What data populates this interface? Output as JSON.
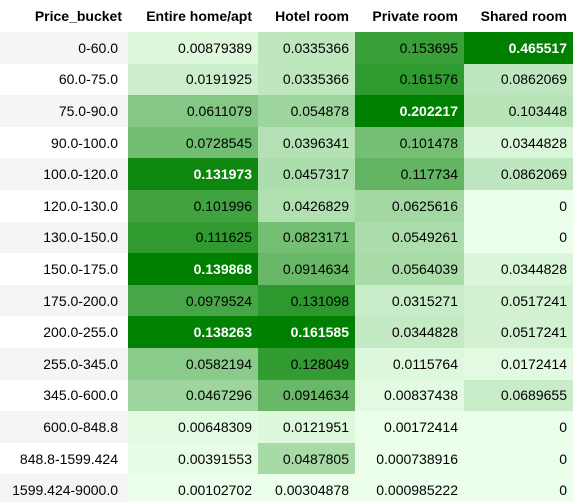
{
  "table": {
    "index_header": "Price_bucket",
    "columns": [
      "Entire home/apt",
      "Hotel room",
      "Private room",
      "Shared room"
    ],
    "rows": [
      {
        "bucket": "0-60.0",
        "values": [
          "0.00879389",
          "0.0335366",
          "0.153695",
          "0.465517"
        ]
      },
      {
        "bucket": "60.0-75.0",
        "values": [
          "0.0191925",
          "0.0335366",
          "0.161576",
          "0.0862069"
        ]
      },
      {
        "bucket": "75.0-90.0",
        "values": [
          "0.0611079",
          "0.054878",
          "0.202217",
          "0.103448"
        ]
      },
      {
        "bucket": "90.0-100.0",
        "values": [
          "0.0728545",
          "0.0396341",
          "0.101478",
          "0.0344828"
        ]
      },
      {
        "bucket": "100.0-120.0",
        "values": [
          "0.131973",
          "0.0457317",
          "0.117734",
          "0.0862069"
        ]
      },
      {
        "bucket": "120.0-130.0",
        "values": [
          "0.101996",
          "0.0426829",
          "0.0625616",
          "0"
        ]
      },
      {
        "bucket": "130.0-150.0",
        "values": [
          "0.111625",
          "0.0823171",
          "0.0549261",
          "0"
        ]
      },
      {
        "bucket": "150.0-175.0",
        "values": [
          "0.139868",
          "0.0914634",
          "0.0564039",
          "0.0344828"
        ]
      },
      {
        "bucket": "175.0-200.0",
        "values": [
          "0.0979524",
          "0.131098",
          "0.0315271",
          "0.0517241"
        ]
      },
      {
        "bucket": "200.0-255.0",
        "values": [
          "0.138263",
          "0.161585",
          "0.0344828",
          "0.0517241"
        ]
      },
      {
        "bucket": "255.0-345.0",
        "values": [
          "0.0582194",
          "0.128049",
          "0.0115764",
          "0.0172414"
        ]
      },
      {
        "bucket": "345.0-600.0",
        "values": [
          "0.0467296",
          "0.0914634",
          "0.00837438",
          "0.0689655"
        ]
      },
      {
        "bucket": "600.0-848.8",
        "values": [
          "0.00648309",
          "0.0121951",
          "0.00172414",
          "0"
        ]
      },
      {
        "bucket": "848.8-1599.424",
        "values": [
          "0.00391553",
          "0.0487805",
          "0.000738916",
          "0"
        ]
      },
      {
        "bucket": "1599.424-9000.0",
        "values": [
          "0.00102702",
          "0.00304878",
          "0.000985222",
          "0"
        ]
      }
    ]
  },
  "colors": {
    "low": "#ebffeb",
    "high": "#008000",
    "light_text": "#ffffff",
    "dark_text": "#000000"
  }
}
